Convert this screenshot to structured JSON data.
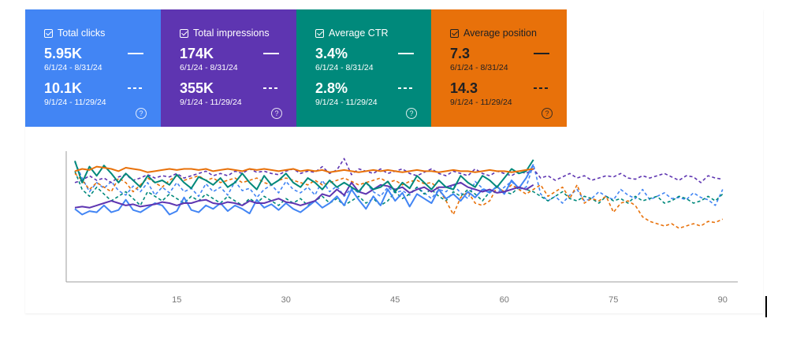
{
  "metrics": [
    {
      "label": "Total clicks",
      "value1": "5.95K",
      "range1": "6/1/24 - 8/31/24",
      "value2": "10.1K",
      "range2": "9/1/24 - 11/29/24",
      "color": "#4285f4",
      "text_color": "#ffffff"
    },
    {
      "label": "Total impressions",
      "value1": "174K",
      "range1": "6/1/24 - 8/31/24",
      "value2": "355K",
      "range2": "9/1/24 - 11/29/24",
      "color": "#5e35b1",
      "text_color": "#ffffff"
    },
    {
      "label": "Average CTR",
      "value1": "3.4%",
      "range1": "6/1/24 - 8/31/24",
      "value2": "2.8%",
      "range2": "9/1/24 - 11/29/24",
      "color": "#00897b",
      "text_color": "#ffffff"
    },
    {
      "label": "Average position",
      "value1": "7.3",
      "range1": "6/1/24 - 8/31/24",
      "value2": "14.3",
      "range2": "9/1/24 - 11/29/24",
      "color": "#e8710a",
      "text_color": "#202124"
    }
  ],
  "help_glyph": "?",
  "chart_data": {
    "type": "line",
    "x_ticks": [
      15,
      30,
      45,
      60,
      75,
      90
    ],
    "xlim": [
      1,
      91
    ],
    "ylim": [
      0,
      1
    ],
    "grid": false,
    "y_axis_labels": false,
    "series": [
      {
        "metric": "Total clicks",
        "period": "6/1/24 - 8/31/24",
        "style": "solid",
        "color": "#4285f4",
        "x_start": 1,
        "values": [
          0.55,
          0.5,
          0.53,
          0.52,
          0.58,
          0.52,
          0.54,
          0.63,
          0.54,
          0.52,
          0.56,
          0.6,
          0.58,
          0.5,
          0.53,
          0.65,
          0.54,
          0.52,
          0.58,
          0.55,
          0.6,
          0.53,
          0.58,
          0.55,
          0.51,
          0.63,
          0.56,
          0.59,
          0.54,
          0.6,
          0.55,
          0.52,
          0.57,
          0.62,
          0.56,
          0.6,
          0.66,
          0.58,
          0.72,
          0.63,
          0.55,
          0.66,
          0.58,
          0.72,
          0.62,
          0.69,
          0.57,
          0.68,
          0.64,
          0.6,
          0.72,
          0.64,
          0.68,
          0.62,
          0.7,
          0.65,
          0.72,
          0.69,
          0.75,
          0.68,
          0.8,
          0.73,
          0.82,
          0.94
        ]
      },
      {
        "metric": "Total clicks",
        "period": "9/1/24 - 11/29/24",
        "style": "dashed",
        "color": "#4285f4",
        "x_start": 1,
        "values": [
          0.96,
          0.82,
          0.7,
          0.78,
          0.73,
          0.79,
          0.71,
          0.67,
          0.75,
          0.7,
          0.78,
          0.67,
          0.74,
          0.69,
          0.78,
          0.7,
          0.73,
          0.66,
          0.77,
          0.7,
          0.74,
          0.67,
          0.79,
          0.71,
          0.73,
          0.65,
          0.72,
          0.76,
          0.69,
          0.79,
          0.72,
          0.69,
          0.74,
          0.67,
          0.8,
          0.7,
          0.75,
          0.66,
          0.73,
          0.69,
          0.78,
          0.7,
          0.66,
          0.74,
          0.69,
          0.71,
          0.67,
          0.74,
          0.69,
          0.64,
          0.72,
          0.7,
          0.76,
          0.69,
          0.64,
          0.79,
          0.73,
          0.7,
          0.69,
          0.74,
          0.79,
          0.72,
          0.74,
          0.94,
          0.68,
          0.62,
          0.66,
          0.6,
          0.67,
          0.72,
          0.62,
          0.64,
          0.7,
          0.66,
          0.63,
          0.72,
          0.67,
          0.64,
          0.72,
          0.63,
          0.66,
          0.69,
          0.64,
          0.65,
          0.63,
          0.69,
          0.65,
          0.63,
          0.58,
          0.72
        ]
      },
      {
        "metric": "Total impressions",
        "period": "6/1/24 - 8/31/24",
        "style": "solid",
        "color": "#5e35b1",
        "x_start": 1,
        "values": [
          0.56,
          0.57,
          0.56,
          0.58,
          0.6,
          0.62,
          0.6,
          0.58,
          0.59,
          0.57,
          0.58,
          0.59,
          0.61,
          0.6,
          0.58,
          0.6,
          0.6,
          0.62,
          0.63,
          0.6,
          0.59,
          0.61,
          0.6,
          0.58,
          0.62,
          0.6,
          0.6,
          0.62,
          0.64,
          0.61,
          0.6,
          0.58,
          0.6,
          0.62,
          0.68,
          0.66,
          0.72,
          0.67,
          0.78,
          0.7,
          0.68,
          0.72,
          0.76,
          0.75,
          0.72,
          0.74,
          0.69,
          0.72,
          0.74,
          0.7,
          0.74,
          0.74,
          0.76,
          0.78,
          0.74,
          0.72,
          0.7,
          0.72,
          0.69,
          0.7,
          0.72,
          0.74,
          0.72,
          0.76
        ]
      },
      {
        "metric": "Total impressions",
        "period": "9/1/24 - 11/29/24",
        "style": "dashed",
        "color": "#5e35b1",
        "x_start": 1,
        "values": [
          0.78,
          0.8,
          0.84,
          0.8,
          0.82,
          0.78,
          0.83,
          0.85,
          0.8,
          0.82,
          0.85,
          0.82,
          0.84,
          0.83,
          0.86,
          0.82,
          0.84,
          0.86,
          0.88,
          0.84,
          0.86,
          0.84,
          0.88,
          0.86,
          0.9,
          0.87,
          0.88,
          0.86,
          0.85,
          0.88,
          0.9,
          0.86,
          0.88,
          0.87,
          0.92,
          0.86,
          0.89,
          0.99,
          0.85,
          0.9,
          0.88,
          0.86,
          0.9,
          0.86,
          0.88,
          0.9,
          0.86,
          0.84,
          0.87,
          0.9,
          0.86,
          0.84,
          0.88,
          0.86,
          0.84,
          0.9,
          0.86,
          0.84,
          0.88,
          0.86,
          0.84,
          0.88,
          0.86,
          0.9,
          0.82,
          0.84,
          0.8,
          0.83,
          0.86,
          0.82,
          0.84,
          0.8,
          0.82,
          0.84,
          0.83,
          0.86,
          0.82,
          0.81,
          0.84,
          0.82,
          0.84,
          0.86,
          0.83,
          0.8,
          0.84,
          0.83,
          0.78,
          0.84,
          0.82,
          0.81
        ]
      },
      {
        "metric": "Average CTR",
        "period": "6/1/24 - 8/31/24",
        "style": "solid",
        "color": "#00897b",
        "x_start": 1,
        "values": [
          0.97,
          0.78,
          0.92,
          0.84,
          0.93,
          0.86,
          0.78,
          0.86,
          0.8,
          0.74,
          0.84,
          0.78,
          0.8,
          0.76,
          0.85,
          0.78,
          0.73,
          0.83,
          0.8,
          0.76,
          0.82,
          0.74,
          0.78,
          0.86,
          0.78,
          0.72,
          0.84,
          0.76,
          0.8,
          0.86,
          0.78,
          0.74,
          0.82,
          0.78,
          0.72,
          0.8,
          0.74,
          0.78,
          0.74,
          0.7,
          0.78,
          0.72,
          0.74,
          0.79,
          0.7,
          0.78,
          0.73,
          0.84,
          0.78,
          0.72,
          0.8,
          0.74,
          0.72,
          0.84,
          0.78,
          0.74,
          0.84,
          0.8,
          0.74,
          0.82,
          0.9,
          0.86,
          0.88,
          0.98
        ]
      },
      {
        "metric": "Average CTR",
        "period": "9/1/24 - 11/29/24",
        "style": "dashed",
        "color": "#00897b",
        "x_start": 1,
        "values": [
          0.88,
          0.72,
          0.66,
          0.74,
          0.68,
          0.62,
          0.66,
          0.7,
          0.64,
          0.58,
          0.7,
          0.66,
          0.62,
          0.68,
          0.64,
          0.6,
          0.66,
          0.62,
          0.68,
          0.64,
          0.6,
          0.66,
          0.62,
          0.58,
          0.64,
          0.6,
          0.66,
          0.62,
          0.58,
          0.64,
          0.6,
          0.64,
          0.58,
          0.62,
          0.66,
          0.6,
          0.64,
          0.58,
          0.62,
          0.66,
          0.6,
          0.64,
          0.58,
          0.62,
          0.7,
          0.64,
          0.68,
          0.74,
          0.68,
          0.72,
          0.66,
          0.62,
          0.7,
          0.66,
          0.72,
          0.68,
          0.62,
          0.7,
          0.74,
          0.7,
          0.68,
          0.74,
          0.72,
          0.7,
          0.66,
          0.62,
          0.66,
          0.7,
          0.64,
          0.62,
          0.66,
          0.64,
          0.6,
          0.66,
          0.62,
          0.64,
          0.6,
          0.66,
          0.62,
          0.64,
          0.66,
          0.6,
          0.62,
          0.66,
          0.64,
          0.6,
          0.62,
          0.66,
          0.62,
          0.68
        ]
      },
      {
        "metric": "Average position",
        "period": "6/1/24 - 8/31/24",
        "style": "solid",
        "color": "#e8710a",
        "x_start": 1,
        "values": [
          0.88,
          0.9,
          0.89,
          0.92,
          0.91,
          0.9,
          0.88,
          0.91,
          0.9,
          0.89,
          0.87,
          0.88,
          0.89,
          0.9,
          0.89,
          0.9,
          0.9,
          0.89,
          0.9,
          0.88,
          0.89,
          0.9,
          0.89,
          0.88,
          0.9,
          0.89,
          0.9,
          0.89,
          0.88,
          0.89,
          0.9,
          0.88,
          0.89,
          0.88,
          0.89,
          0.87,
          0.88,
          0.89,
          0.88,
          0.87,
          0.88,
          0.89,
          0.88,
          0.89,
          0.88,
          0.87,
          0.88,
          0.89,
          0.88,
          0.88,
          0.87,
          0.88,
          0.89,
          0.88,
          0.88,
          0.87,
          0.88,
          0.89,
          0.88,
          0.88,
          0.87,
          0.88,
          0.89,
          0.9
        ]
      },
      {
        "metric": "Average position",
        "period": "9/1/24 - 11/29/24",
        "style": "dashed",
        "color": "#e8710a",
        "x_start": 1,
        "values": [
          0.86,
          0.8,
          0.72,
          0.78,
          0.74,
          0.7,
          0.82,
          0.78,
          0.7,
          0.76,
          0.82,
          0.78,
          0.74,
          0.8,
          0.84,
          0.8,
          0.82,
          0.84,
          0.8,
          0.82,
          0.78,
          0.8,
          0.82,
          0.78,
          0.8,
          0.82,
          0.78,
          0.76,
          0.8,
          0.82,
          0.8,
          0.78,
          0.76,
          0.8,
          0.76,
          0.78,
          0.8,
          0.82,
          0.79,
          0.76,
          0.78,
          0.8,
          0.82,
          0.78,
          0.8,
          0.76,
          0.79,
          0.8,
          0.77,
          0.78,
          0.72,
          0.62,
          0.5,
          0.65,
          0.7,
          0.6,
          0.58,
          0.62,
          0.74,
          0.7,
          0.76,
          0.72,
          0.68,
          0.72,
          0.76,
          0.66,
          0.7,
          0.74,
          0.64,
          0.76,
          0.6,
          0.64,
          0.62,
          0.66,
          0.52,
          0.6,
          0.62,
          0.58,
          0.48,
          0.44,
          0.42,
          0.4,
          0.42,
          0.38,
          0.4,
          0.42,
          0.4,
          0.44,
          0.43,
          0.46
        ]
      }
    ]
  }
}
